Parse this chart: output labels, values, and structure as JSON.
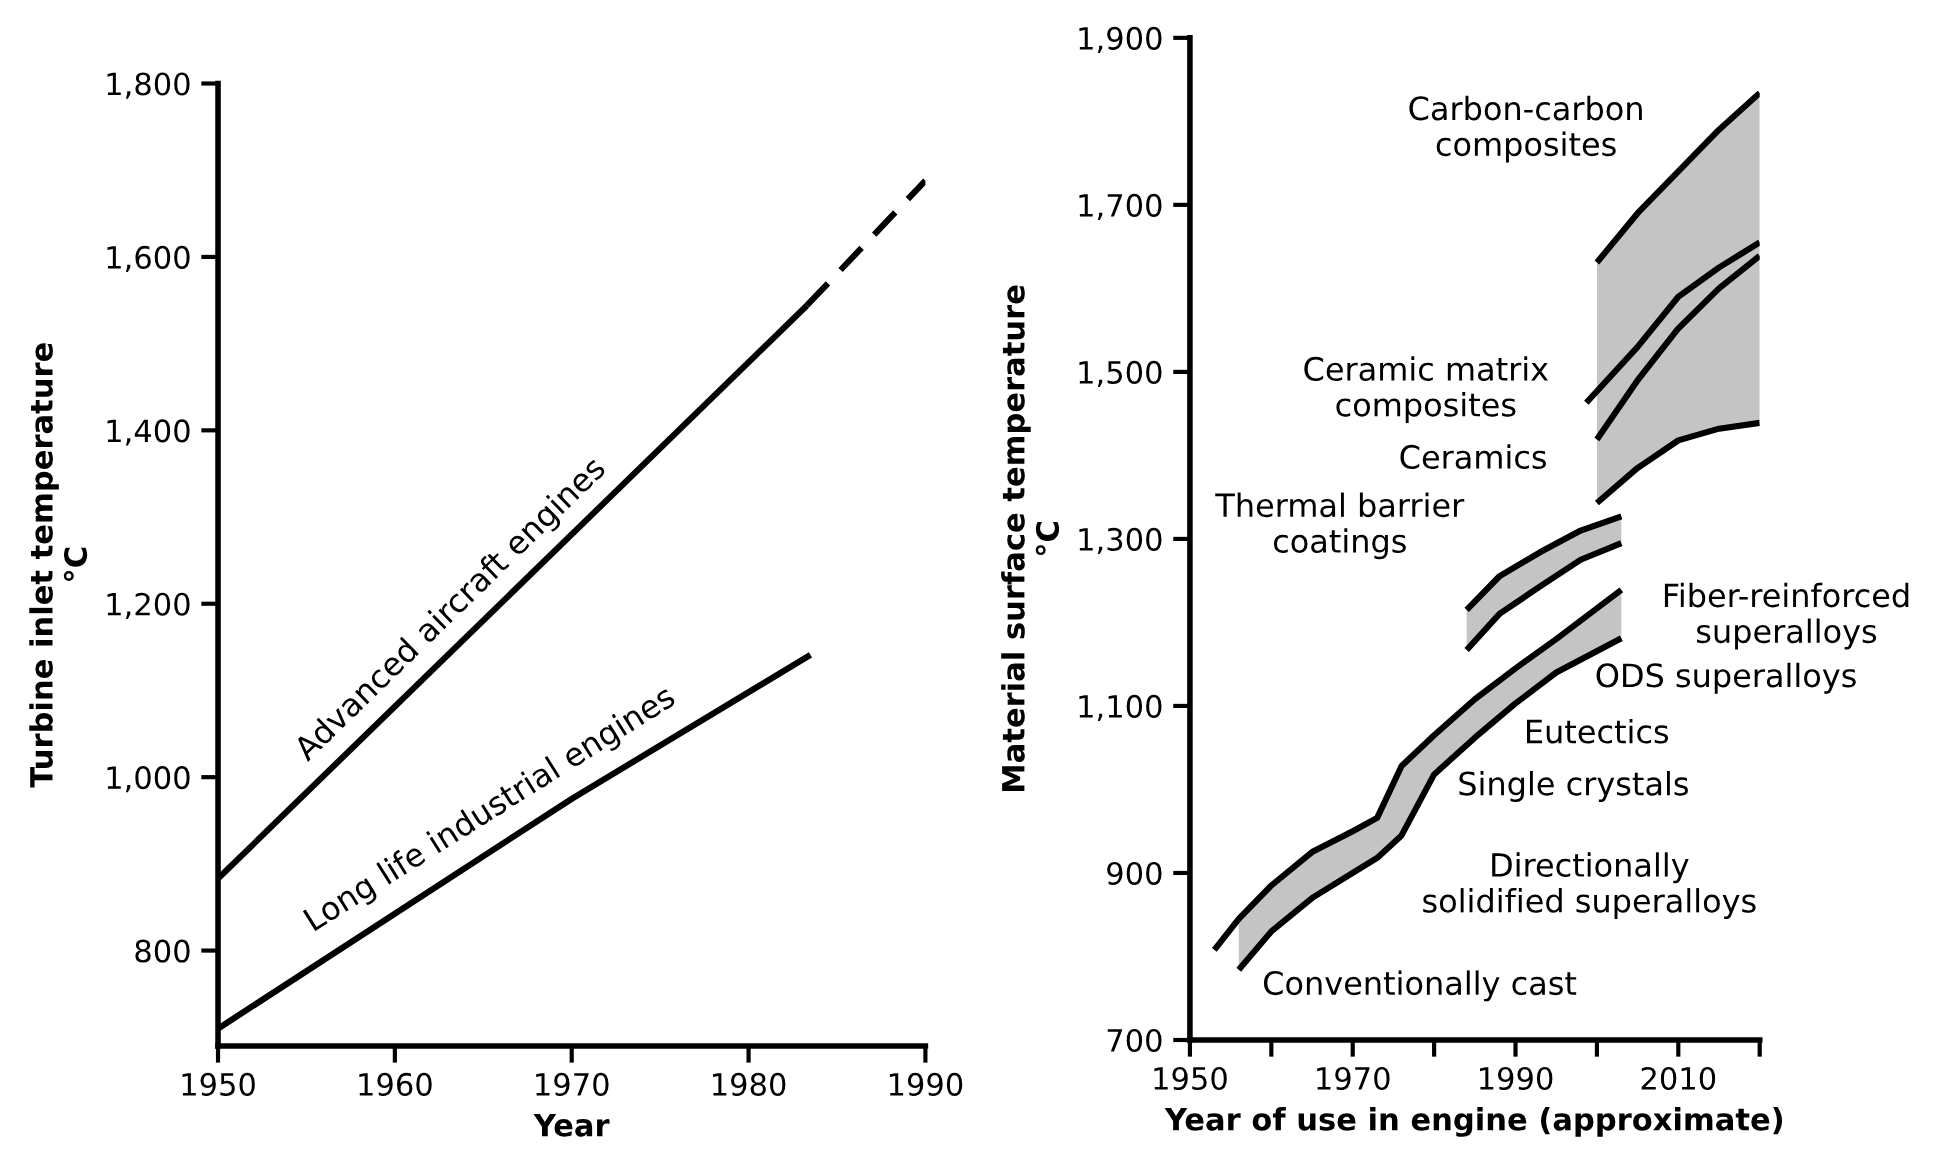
{
  "chart_data": [
    {
      "type": "line",
      "xlabel": "Year",
      "ylabel": "Turbine inlet temperature\n°C",
      "xlim": [
        1950,
        1990
      ],
      "xticks": [
        1950,
        1960,
        1970,
        1980,
        1990
      ],
      "ylim": [
        690,
        1800
      ],
      "yticks": [
        {
          "value": 800,
          "label": "800"
        },
        {
          "value": 1000,
          "label": "1,000"
        },
        {
          "value": 1200,
          "label": "1,200"
        },
        {
          "value": 1400,
          "label": "1,400"
        },
        {
          "value": 1600,
          "label": "1,600"
        },
        {
          "value": 1800,
          "label": "1,800"
        }
      ],
      "grid": false,
      "legend": false,
      "series": [
        {
          "color": "#000000",
          "line_style": "solid",
          "x": [
            1950,
            1983.3
          ],
          "values": [
            883,
            1544
          ]
        },
        {
          "color": "#000000",
          "line_style": "solid",
          "x": [
            1950,
            1970,
            1983.5
          ],
          "values": [
            710,
            975,
            1141
          ]
        },
        {
          "color": "#000000",
          "line_style": "dashed",
          "x": [
            1983.3,
            1990
          ],
          "values": [
            1544,
            1688
          ]
        }
      ],
      "annotations": [
        "Advanced aircraft engines",
        "Long life industrial engines"
      ]
    },
    {
      "type": "line",
      "xlabel": "Year of use in engine (approximate)",
      "ylabel": "Material surface temperature\n°C",
      "xlim": [
        1950,
        2020
      ],
      "xticks": [
        1950,
        {
          "value": 1960,
          "label": null
        },
        1970,
        {
          "value": 1980,
          "label": null
        },
        1990,
        {
          "value": 2000,
          "label": null
        },
        2010,
        {
          "value": 2020,
          "label": null
        }
      ],
      "ylim": [
        700,
        1900
      ],
      "yticks": [
        {
          "value": 700,
          "label": "700"
        },
        {
          "value": 900,
          "label": "900"
        },
        {
          "value": 1100,
          "label": "1,100"
        },
        {
          "value": 1300,
          "label": "1,300"
        },
        {
          "value": 1500,
          "label": "1,500"
        },
        {
          "value": 1700,
          "label": "1,700"
        },
        {
          "value": 1900,
          "label": "1,900"
        }
      ],
      "grid": false,
      "legend": false,
      "series": [
        {
          "color": "#000000",
          "x": [
            1953,
            1956,
            1960,
            1965,
            1970,
            1973,
            1976,
            1980,
            1985,
            1990,
            1995,
            2003
          ],
          "values": [
            808,
            845,
            885,
            925,
            950,
            966,
            1028,
            1065,
            1108,
            1145,
            1180,
            1239
          ]
        },
        {
          "color": "#000000",
          "x": [
            1956,
            1960,
            1965,
            1970,
            1973,
            1976,
            1980,
            1985,
            1990,
            1995,
            2003
          ],
          "values": [
            784,
            830,
            870,
            900,
            918,
            945,
            1018,
            1062,
            1103,
            1140,
            1181
          ]
        },
        {
          "color": "#000000",
          "x": [
            1984,
            1988,
            1993,
            1998,
            2003
          ],
          "values": [
            1215,
            1255,
            1284,
            1310,
            1327
          ]
        },
        {
          "color": "#000000",
          "x": [
            1984,
            1988,
            1993,
            1998,
            2003
          ],
          "values": [
            1167,
            1210,
            1243,
            1275,
            1295
          ]
        },
        {
          "color": "#000000",
          "x": [
            2000,
            2005,
            2010,
            2015,
            2020
          ],
          "values": [
            1631,
            1690,
            1740,
            1790,
            1834
          ]
        },
        {
          "color": "#000000",
          "x": [
            2000,
            2005,
            2010,
            2015,
            2020
          ],
          "values": [
            1343,
            1385,
            1418,
            1432,
            1439
          ]
        },
        {
          "color": "#000000",
          "x": [
            1998.7,
            2005,
            2010,
            2015,
            2020
          ],
          "values": [
            1463,
            1530,
            1590,
            1625,
            1655
          ]
        },
        {
          "color": "#000000",
          "x": [
            2000,
            2005,
            2010,
            2015,
            2020
          ],
          "values": [
            1419,
            1490,
            1552,
            1600,
            1639
          ]
        }
      ],
      "annotations": [
        "Carbon-carbon\ncomposites",
        "Ceramic matrix\ncomposites",
        "Ceramics",
        "Thermal barrier\ncoatings",
        "Fiber-reinforced\nsuperalloys",
        "ODS superalloys",
        "Eutectics",
        "Single crystals",
        "Directionally\nsolidified superalloys",
        "Conventionally cast"
      ]
    }
  ]
}
